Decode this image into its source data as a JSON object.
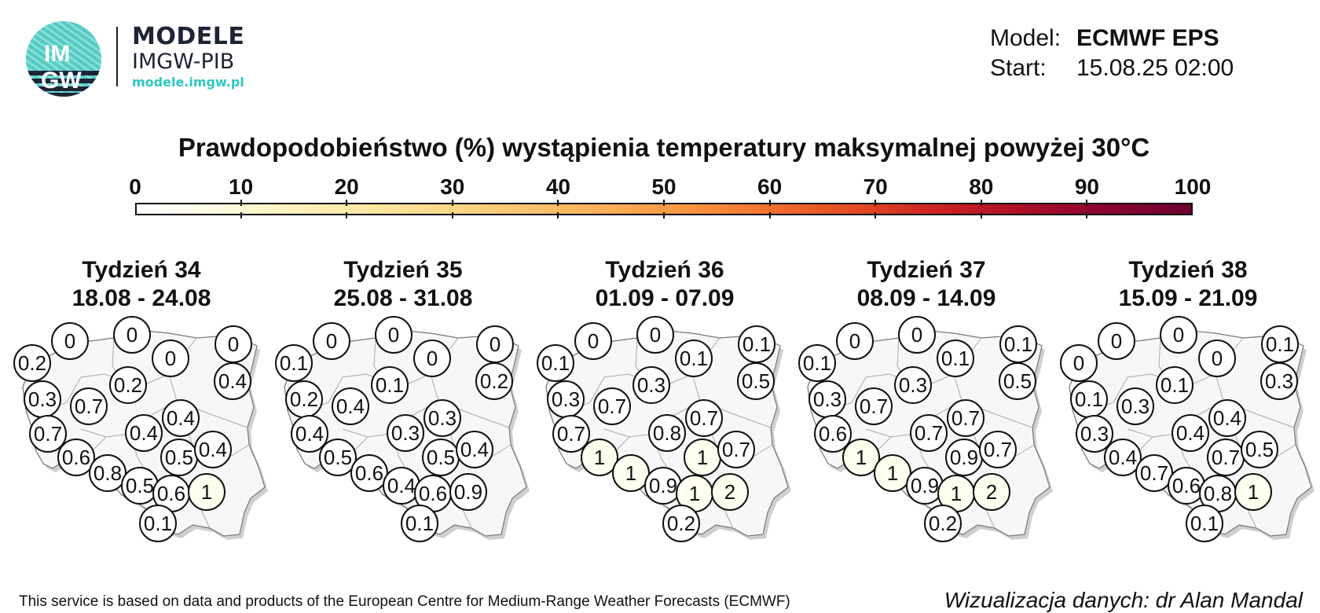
{
  "header": {
    "logo_text_top": "IM",
    "logo_text_bottom": "GW",
    "brand_title": "MODELE",
    "brand_subtitle": "IMGW-PIB",
    "brand_url": "modele.imgw.pl",
    "model_label": "Model:",
    "model_value": "ECMWF EPS",
    "start_label": "Start:",
    "start_value": "15.08.25 02:00"
  },
  "title": "Prawdopodobieństwo (%) wystąpienia temperatury maksymalnej powyżej 30°C",
  "colorbar": {
    "ticks": [
      "0",
      "10",
      "20",
      "30",
      "40",
      "50",
      "60",
      "70",
      "80",
      "90",
      "100"
    ],
    "colors": [
      "#ffffff",
      "#fffbe0",
      "#fdd27f",
      "#f8973f",
      "#e44a22",
      "#ad0f27",
      "#6e0131"
    ]
  },
  "footer": {
    "left": "This service is based on data and products of the European Centre for Medium-Range Weather Forecasts (ECMWF)",
    "right": "Wizualizacja danych: dr Alan Mandal"
  },
  "weeks": [
    {
      "title": "Tydzień 34",
      "range": "18.08 - 24.08",
      "values": [
        "0",
        "0",
        "0",
        "0.2",
        "0",
        "0.2",
        "0.4",
        "0.3",
        "0.7",
        "0.7",
        "0.4",
        "0.4",
        "0.6",
        "0.5",
        "0.4",
        "0.8",
        "0.5",
        "0.6",
        "1",
        "0.1"
      ]
    },
    {
      "title": "Tydzień 35",
      "range": "25.08 - 31.08",
      "values": [
        "0",
        "0",
        "0",
        "0.1",
        "0",
        "0.1",
        "0.2",
        "0.2",
        "0.4",
        "0.4",
        "0.3",
        "0.3",
        "0.5",
        "0.5",
        "0.4",
        "0.6",
        "0.4",
        "0.6",
        "0.9",
        "0.1"
      ]
    },
    {
      "title": "Tydzień 36",
      "range": "01.09 - 07.09",
      "values": [
        "0",
        "0",
        "0.1",
        "0.1",
        "0.1",
        "0.3",
        "0.5",
        "0.3",
        "0.7",
        "0.7",
        "0.8",
        "0.7",
        "1",
        "1",
        "0.7",
        "1",
        "0.9",
        "1",
        "2",
        "0.2"
      ]
    },
    {
      "title": "Tydzień 37",
      "range": "08.09 - 14.09",
      "values": [
        "0",
        "0",
        "0.1",
        "0.1",
        "0.1",
        "0.3",
        "0.5",
        "0.3",
        "0.7",
        "0.6",
        "0.7",
        "0.7",
        "1",
        "0.9",
        "0.7",
        "1",
        "0.9",
        "1",
        "2",
        "0.2"
      ]
    },
    {
      "title": "Tydzień 38",
      "range": "15.09 - 21.09",
      "values": [
        "0",
        "0",
        "0",
        "0",
        "0.1",
        "0.1",
        "0.3",
        "0.1",
        "0.3",
        "0.3",
        "0.4",
        "0.4",
        "0.4",
        "0.7",
        "0.5",
        "0.7",
        "0.6",
        "0.8",
        "1",
        "0.1"
      ]
    }
  ]
}
